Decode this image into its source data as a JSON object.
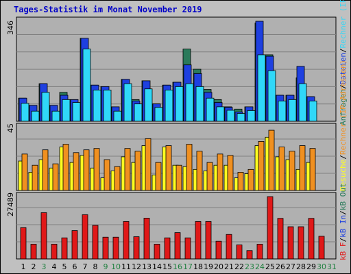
{
  "title": "Tages-Statistik im Monat November 2019",
  "colors": {
    "background": "#c0c0c0",
    "plot_bg": "#b0b0b0",
    "title": "#0000c8",
    "anfragen": "#2a7a5a",
    "dateien": "#1e40e0",
    "rechner": "#30d8f8",
    "besuche": "#ffff20",
    "kb_in": "#f09020",
    "kb_f": "#e01818",
    "day_green": "#208040",
    "sep": "#d8d8d8"
  },
  "chart_data": {
    "type": "bar",
    "categories": [
      "1",
      "2",
      "3",
      "4",
      "5",
      "6",
      "7",
      "8",
      "9",
      "10",
      "11",
      "12",
      "13",
      "14",
      "15",
      "16",
      "17",
      "18",
      "19",
      "20",
      "21",
      "22",
      "23",
      "24",
      "25",
      "26",
      "27",
      "28",
      "29",
      "30",
      "31"
    ],
    "weekend_days": [
      "3",
      "9",
      "10",
      "16",
      "17",
      "23",
      "24",
      "30",
      "31"
    ],
    "panels": [
      {
        "ymax_label": "346",
        "ymax": 346,
        "legend": [
          {
            "text": "Anfragen",
            "color": "#2a7a5a"
          },
          {
            "text": "/",
            "color": "#000000"
          },
          {
            "text": "Dateien",
            "color": "#1e40e0"
          },
          {
            "text": "/",
            "color": "#000000"
          },
          {
            "text": "Rechner (IP-Adressen)",
            "color": "#30d8f8"
          }
        ],
        "series": [
          {
            "name": "Anfragen",
            "values": [
              80,
              55,
              130,
              55,
              100,
              75,
              287,
              125,
              120,
              50,
              145,
              75,
              140,
              60,
              125,
              135,
              250,
              180,
              110,
              75,
              50,
              42,
              50,
              340,
              230,
              90,
              90,
              150,
              85,
              null,
              null
            ]
          },
          {
            "name": "Dateien",
            "values": [
              80,
              55,
              130,
              55,
              90,
              75,
              287,
              125,
              120,
              50,
              145,
              70,
              140,
              60,
              125,
              135,
              195,
              165,
              100,
              65,
              48,
              32,
              50,
              346,
              225,
              90,
              90,
              190,
              85,
              null,
              null
            ]
          },
          {
            "name": "Rechner",
            "values": [
              62,
              35,
              100,
              35,
              75,
              65,
              250,
              108,
              108,
              35,
              130,
              60,
              112,
              48,
              108,
              120,
              130,
              120,
              80,
              50,
              38,
              27,
              37,
              230,
              175,
              70,
              75,
              130,
              70,
              null,
              null
            ]
          }
        ]
      },
      {
        "ymax_label": "45",
        "ymax": 45,
        "legend": [
          {
            "text": "Besuche",
            "color": "#ffff20"
          },
          {
            "text": "/",
            "color": "#000000"
          },
          {
            "text": "Rechner (IP-Adressen)",
            "color": "#f09020"
          }
        ],
        "series": [
          {
            "name": "Besuche",
            "values": [
              21,
              13,
              22,
              16,
              31,
              20,
              25,
              16,
              9,
              14,
              24,
              20,
              32,
              11,
              31,
              18,
              17,
              15,
              14,
              18,
              18,
              9,
              12,
              32,
              38,
              24,
              22,
              15,
              20,
              null,
              null
            ]
          },
          {
            "name": "Rechner",
            "values": [
              26,
              18,
              29,
              19,
              33,
              27,
              29,
              30,
              22,
              17,
              30,
              28,
              37,
              20,
              32,
              18,
              33,
              28,
              20,
              26,
              25,
              13,
              15,
              35,
              43,
              31,
              28,
              32,
              30,
              null,
              null
            ]
          }
        ]
      },
      {
        "ymax_label": "27489",
        "ymax": 27489,
        "legend": [
          {
            "text": "kB F",
            "color": "#e01818"
          },
          {
            "text": "/",
            "color": "#000000"
          },
          {
            "text": "kB In",
            "color": "#1e40e0"
          },
          {
            "text": "/",
            "color": "#000000"
          },
          {
            "text": "kB Out",
            "color": "#2a7a5a"
          }
        ],
        "series": [
          {
            "name": "kB F",
            "values": [
              13800,
              6500,
              20400,
              6500,
              9300,
              12500,
              19500,
              14800,
              9600,
              9600,
              16500,
              9800,
              18000,
              6500,
              9300,
              11600,
              9300,
              16500,
              16500,
              7800,
              10800,
              6200,
              3700,
              6500,
              27489,
              17900,
              14200,
              14200,
              17900,
              10000,
              null
            ]
          }
        ]
      }
    ]
  }
}
